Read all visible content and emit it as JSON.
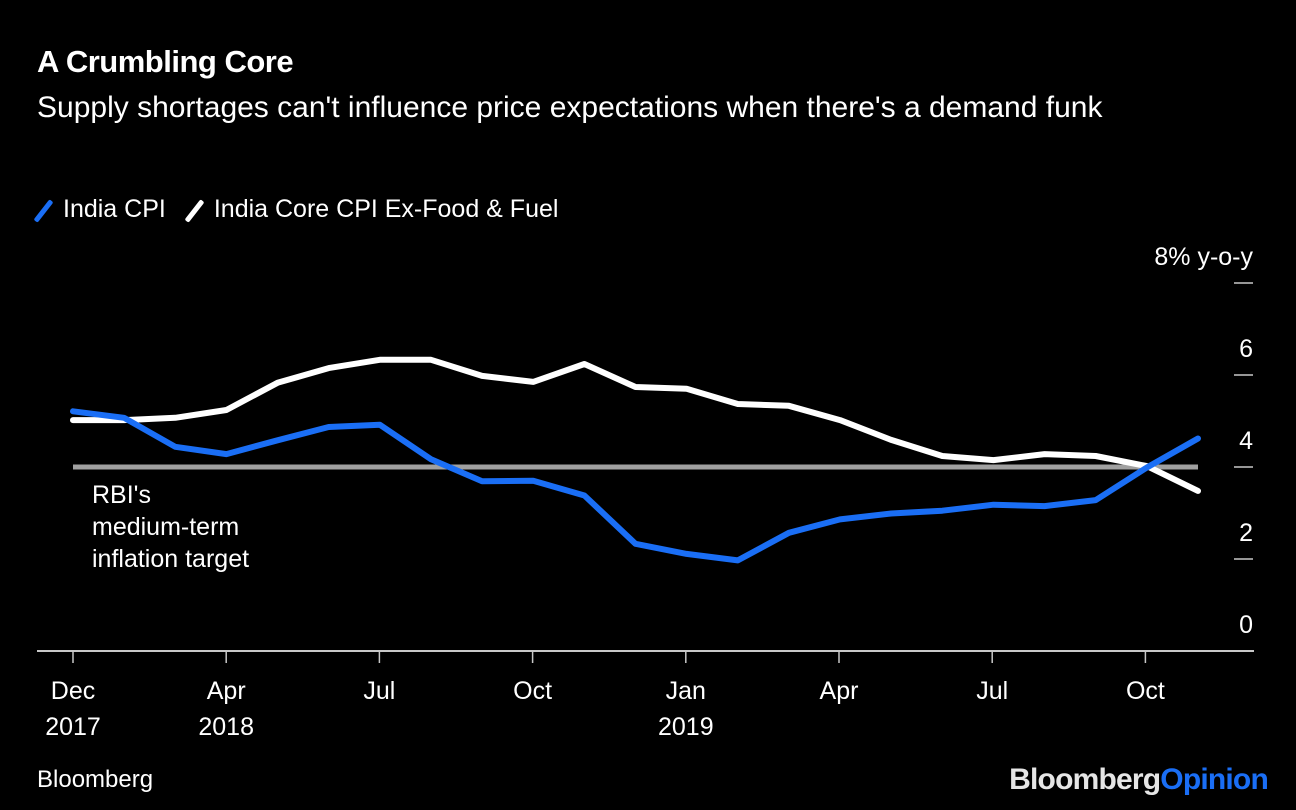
{
  "header": {
    "title": "A Crumbling Core",
    "subtitle": "Supply shortages can't influence price expectations when there's a demand funk"
  },
  "legend": [
    {
      "label": "India CPI",
      "color": "#1a6ef5"
    },
    {
      "label": "India Core CPI Ex-Food & Fuel",
      "color": "#ffffff"
    }
  ],
  "footer": {
    "source": "Bloomberg",
    "brand_part1": "Bloomberg",
    "brand_part2": "Opinion"
  },
  "chart_data": {
    "type": "line",
    "title": "A Crumbling Core",
    "subtitle": "Supply shortages can't influence price expectations when there's a demand funk",
    "xlabel": "",
    "ylabel": "% y-o-y",
    "ylim": [
      0,
      8
    ],
    "yticks": [
      0,
      2,
      4,
      6,
      8
    ],
    "ytick_labels": [
      "0",
      "2",
      "4",
      "6",
      "8% y-o-y"
    ],
    "y_axis_position": "right",
    "grid": false,
    "legend_position": "top-left",
    "x": [
      "Dec 2017",
      "Jan 2018",
      "Feb 2018",
      "Mar 2018",
      "Apr 2018",
      "May 2018",
      "Jun 2018",
      "Jul 2018",
      "Aug 2018",
      "Sep 2018",
      "Oct 2018",
      "Nov 2018",
      "Dec 2018",
      "Jan 2019",
      "Feb 2019",
      "Mar 2019",
      "Apr 2019",
      "May 2019",
      "Jun 2019",
      "Jul 2019",
      "Aug 2019",
      "Sep 2019",
      "Oct 2019"
    ],
    "xtick_labels": [
      {
        "month": "Dec",
        "year": "2017"
      },
      {
        "month": "Apr",
        "year": "2018"
      },
      {
        "month": "Jul",
        "year": ""
      },
      {
        "month": "Oct",
        "year": ""
      },
      {
        "month": "Jan",
        "year": "2019"
      },
      {
        "month": "Apr",
        "year": ""
      },
      {
        "month": "Jul",
        "year": ""
      },
      {
        "month": "Oct",
        "year": ""
      }
    ],
    "series": [
      {
        "name": "India CPI",
        "color": "#1a6ef5",
        "values": [
          5.21,
          5.07,
          4.44,
          4.28,
          4.58,
          4.87,
          4.92,
          4.17,
          3.69,
          3.7,
          3.38,
          2.33,
          2.11,
          1.97,
          2.57,
          2.86,
          2.99,
          3.05,
          3.18,
          3.15,
          3.28,
          3.99,
          4.62
        ]
      },
      {
        "name": "India Core CPI Ex-Food & Fuel",
        "color": "#ffffff",
        "values": [
          5.02,
          5.02,
          5.07,
          5.24,
          5.83,
          6.15,
          6.33,
          6.33,
          5.98,
          5.85,
          6.24,
          5.74,
          5.7,
          5.37,
          5.33,
          5.02,
          4.59,
          4.24,
          4.15,
          4.28,
          4.24,
          4.02,
          3.48
        ]
      }
    ],
    "reference_line": {
      "value": 4,
      "color": "#a0a0a0",
      "label": "RBI's medium-term inflation target",
      "label_lines": [
        "RBI's",
        "medium-term",
        "inflation target"
      ]
    }
  }
}
